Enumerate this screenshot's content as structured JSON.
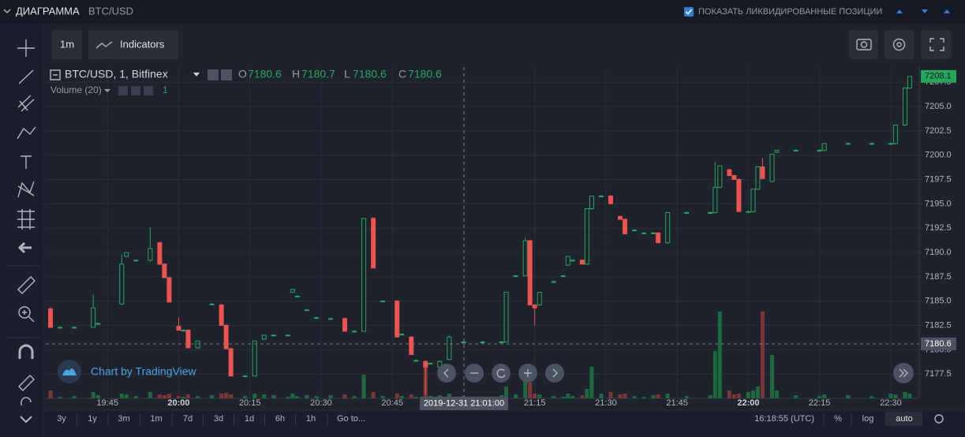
{
  "header": {
    "title": "ДИАГРАММА",
    "symbol": "BTC/USD",
    "checkbox": "ПОКАЗАТЬ ЛИКВИДИРОВАННЫЕ ПОЗИЦИИ"
  },
  "toolbar": {
    "interval": "1m",
    "indicators": "Indicators"
  },
  "legend": {
    "symbol": "BTC/USD, 1, Bitfinex",
    "o_label": "O",
    "o": 7180.6,
    "h_label": "H",
    "h": 7180.7,
    "l_label": "L",
    "l": 7180.6,
    "c_label": "C",
    "c": 7180.6,
    "volume_label": "Volume (20)",
    "volume": 1
  },
  "watermark": "Chart by TradingView",
  "chart_data": {
    "type": "candlestick",
    "x": [
      "19:33",
      "19:35",
      "19:38",
      "19:42",
      "19:43",
      "19:48",
      "19:49",
      "19:51",
      "19:54",
      "19:56",
      "19:57",
      "19:58",
      "20:00",
      "20:01",
      "20:02",
      "20:04",
      "20:07",
      "20:09",
      "20:10",
      "20:11",
      "20:14",
      "20:16",
      "20:18",
      "20:20",
      "20:23",
      "20:24",
      "20:25",
      "20:27",
      "20:29",
      "20:32",
      "20:35",
      "20:37",
      "20:39",
      "20:41",
      "20:43",
      "20:46",
      "20:47",
      "20:49",
      "20:50",
      "20:52",
      "20:53",
      "20:55",
      "20:57",
      "21:00",
      "21:04",
      "21:08",
      "21:09",
      "21:11",
      "21:13",
      "21:14",
      "21:15",
      "21:16",
      "21:19",
      "21:21",
      "21:22",
      "21:23",
      "21:25",
      "21:26",
      "21:27",
      "21:29",
      "21:31",
      "21:33",
      "21:34",
      "21:36",
      "21:38",
      "21:40",
      "21:41",
      "21:43",
      "21:47",
      "21:52",
      "21:53",
      "21:54",
      "21:56",
      "21:57",
      "21:58",
      "22:00",
      "22:01",
      "22:02",
      "22:03",
      "22:05",
      "22:06",
      "22:10",
      "22:15",
      "22:16",
      "22:21",
      "22:26",
      "22:30",
      "22:31",
      "22:33",
      "22:34"
    ],
    "open": [
      7184.2,
      7182.3,
      7182.3,
      7182.3,
      7182.7,
      7184.7,
      7189.6,
      7189.2,
      7189.2,
      7191.0,
      7188.8,
      7187.4,
      7182.4,
      7182.0,
      7182.0,
      7180.2,
      7184.7,
      7184.6,
      7182.5,
      7180.1,
      7177.3,
      7177.3,
      7181.1,
      7181.5,
      7181.5,
      7185.9,
      7185.5,
      7184.1,
      7183.3,
      7183.2,
      7183.2,
      7181.9,
      7181.9,
      7193.5,
      7185.0,
      7185.0,
      7181.6,
      7181.3,
      7178.9,
      7178.8,
      7178.6,
      7178.2,
      7179.0,
      7180.8,
      7180.8,
      7180.8,
      7180.8,
      7187.6,
      7187.6,
      7191.2,
      7184.6,
      7184.6,
      7187.0,
      7187.6,
      7188.7,
      7189.2,
      7189.2,
      7188.8,
      7194.5,
      7195.8,
      7195.8,
      7193.7,
      7193.4,
      7192.3,
      7192.0,
      7192.0,
      7192.0,
      7191.0,
      7194.1,
      7194.1,
      7194.1,
      7196.7,
      7198.5,
      7197.9,
      7197.5,
      7194.2,
      7194.2,
      7196.5,
      7198.8,
      7197.3,
      7200.3,
      7200.5,
      7200.5,
      7200.5,
      7201.2,
      7201.2,
      7201.2,
      7201.2,
      7203.1,
      7206.9
    ],
    "high": [
      7184.4,
      7182.4,
      7182.4,
      7185.7,
      7182.8,
      7189.8,
      7190.0,
      7189.3,
      7192.6,
      7191.1,
      7188.9,
      7187.5,
      7183.3,
      7182.1,
      7182.1,
      7180.9,
      7184.8,
      7184.7,
      7182.6,
      7180.2,
      7177.4,
      7180.9,
      7181.5,
      7181.6,
      7181.6,
      7186.2,
      7185.6,
      7184.2,
      7183.4,
      7183.3,
      7183.3,
      7182.0,
      7193.5,
      7193.6,
      7185.1,
      7185.1,
      7181.7,
      7181.4,
      7179.0,
      7178.9,
      7178.7,
      7178.9,
      7181.5,
      7180.9,
      7180.9,
      7180.9,
      7185.9,
      7187.7,
      7191.5,
      7191.3,
      7184.7,
      7185.9,
      7187.1,
      7187.7,
      7189.6,
      7189.3,
      7189.3,
      7194.5,
      7195.8,
      7195.9,
      7195.9,
      7193.8,
      7193.5,
      7192.4,
      7192.1,
      7192.1,
      7192.1,
      7194.1,
      7194.2,
      7194.2,
      7199.3,
      7198.9,
      7198.6,
      7198.0,
      7197.6,
      7194.3,
      7196.5,
      7198.8,
      7199.7,
      7200.1,
      7200.5,
      7200.6,
      7200.6,
      7201.2,
      7201.3,
      7201.3,
      7201.3,
      7203.1,
      7206.9,
      7208.1
    ],
    "low": [
      7182.3,
      7182.2,
      7182.2,
      7182.3,
      7182.6,
      7184.6,
      7189.5,
      7189.1,
      7189.0,
      7188.7,
      7187.4,
      7184.9,
      7182.0,
      7181.9,
      7180.2,
      7180.1,
      7184.6,
      7182.5,
      7180.1,
      7177.3,
      7177.2,
      7177.3,
      7181.0,
      7181.4,
      7181.4,
      7185.9,
      7185.4,
      7184.0,
      7183.2,
      7183.1,
      7181.9,
      7181.8,
      7181.9,
      7188.4,
      7184.9,
      7181.3,
      7181.5,
      7179.5,
      7178.8,
      7175.4,
      7178.5,
      7178.1,
      7178.9,
      7180.7,
      7180.7,
      7180.7,
      7180.8,
      7187.5,
      7187.6,
      7184.6,
      7182.5,
      7184.5,
      7186.9,
      7187.5,
      7188.6,
      7189.1,
      7188.8,
      7188.7,
      7194.4,
      7195.7,
      7195.0,
      7193.4,
      7191.9,
      7192.2,
      7191.9,
      7191.9,
      7191.0,
      7190.9,
      7194.0,
      7194.0,
      7194.0,
      7196.6,
      7197.9,
      7197.5,
      7194.2,
      7194.1,
      7194.1,
      7196.4,
      7197.6,
      7197.2,
      7200.2,
      7200.4,
      7200.4,
      7200.4,
      7201.1,
      7201.1,
      7201.1,
      7201.1,
      7203.0,
      7206.8
    ],
    "close": [
      7182.3,
      7182.3,
      7182.3,
      7184.3,
      7182.7,
      7188.8,
      7190.0,
      7189.2,
      7190.4,
      7188.8,
      7187.4,
      7184.9,
      7182.0,
      7182.0,
      7180.2,
      7180.9,
      7184.7,
      7182.5,
      7180.1,
      7177.3,
      7177.3,
      7180.9,
      7181.5,
      7181.5,
      7181.5,
      7186.2,
      7185.5,
      7184.1,
      7183.3,
      7183.2,
      7181.9,
      7181.9,
      7193.5,
      7188.4,
      7185.0,
      7181.3,
      7181.6,
      7179.5,
      7178.9,
      7178.2,
      7178.6,
      7178.8,
      7181.3,
      7180.8,
      7180.8,
      7180.8,
      7185.9,
      7187.6,
      7191.2,
      7184.6,
      7184.3,
      7185.9,
      7187.0,
      7187.6,
      7189.6,
      7189.2,
      7188.8,
      7194.5,
      7195.8,
      7195.8,
      7195.0,
      7193.4,
      7191.9,
      7192.3,
      7192.0,
      7192.0,
      7191.0,
      7194.1,
      7194.1,
      7194.1,
      7196.7,
      7198.9,
      7197.9,
      7197.5,
      7194.2,
      7194.2,
      7196.5,
      7198.8,
      7197.6,
      7200.1,
      7200.5,
      7200.5,
      7200.5,
      7201.2,
      7201.2,
      7201.2,
      7201.2,
      7203.1,
      7206.9,
      7208.1
    ],
    "volume": [
      10,
      2,
      3,
      8,
      4,
      6,
      5,
      3,
      8,
      5,
      4,
      6,
      3,
      2,
      5,
      3,
      4,
      6,
      7,
      5,
      3,
      6,
      5,
      4,
      2,
      6,
      3,
      4,
      3,
      4,
      5,
      3,
      30,
      8,
      3,
      6,
      3,
      5,
      2,
      45,
      3,
      4,
      6,
      3,
      2,
      4,
      15,
      5,
      30,
      20,
      6,
      5,
      3,
      2,
      6,
      3,
      4,
      12,
      40,
      6,
      8,
      5,
      6,
      3,
      2,
      4,
      5,
      6,
      3,
      4,
      60,
      110,
      10,
      5,
      6,
      8,
      10,
      15,
      110,
      55,
      10,
      4,
      3,
      5,
      4,
      3,
      6,
      5,
      8,
      6
    ],
    "up_color": "#26a65b",
    "down_color": "#ef5350",
    "volume_up_color": "#1c6a3e",
    "volume_down_color": "#7c3636",
    "ylim": [
      7175,
      7209.06
    ],
    "yticks": [
      7177.5,
      {
        "value": 7180,
        "label": "7180.0"
      },
      7182.5,
      {
        "value": 7185,
        "label": "7185.0"
      },
      7187.5,
      {
        "value": 7190,
        "label": "7190.0"
      },
      7192.5,
      {
        "value": 7195,
        "label": "7195.0"
      },
      7197.5,
      {
        "value": 7200,
        "label": "7200.0"
      },
      7202.5,
      {
        "value": 7205,
        "label": "7205.0"
      },
      7207.5
    ],
    "xlim": [
      "19:32",
      "22:36"
    ],
    "xticks": [
      "19:45",
      "20:00",
      "20:15",
      "20:30",
      "20:45",
      "21:15",
      "21:30",
      "21:45",
      "22:00",
      "22:15",
      "22:30"
    ],
    "grid": true,
    "last_price": 7208.1,
    "crosshair_price": 7180.6,
    "crosshair_time": "2019-12-31 21:01:00"
  },
  "bottom": {
    "ranges": [
      "3y",
      "1y",
      "3m",
      "1m",
      "7d",
      "3d",
      "1d",
      "6h",
      "1h"
    ],
    "goto": "Go to...",
    "clock": "16:18:55 (UTC)",
    "percent": "%",
    "log": "log",
    "auto": "auto"
  }
}
